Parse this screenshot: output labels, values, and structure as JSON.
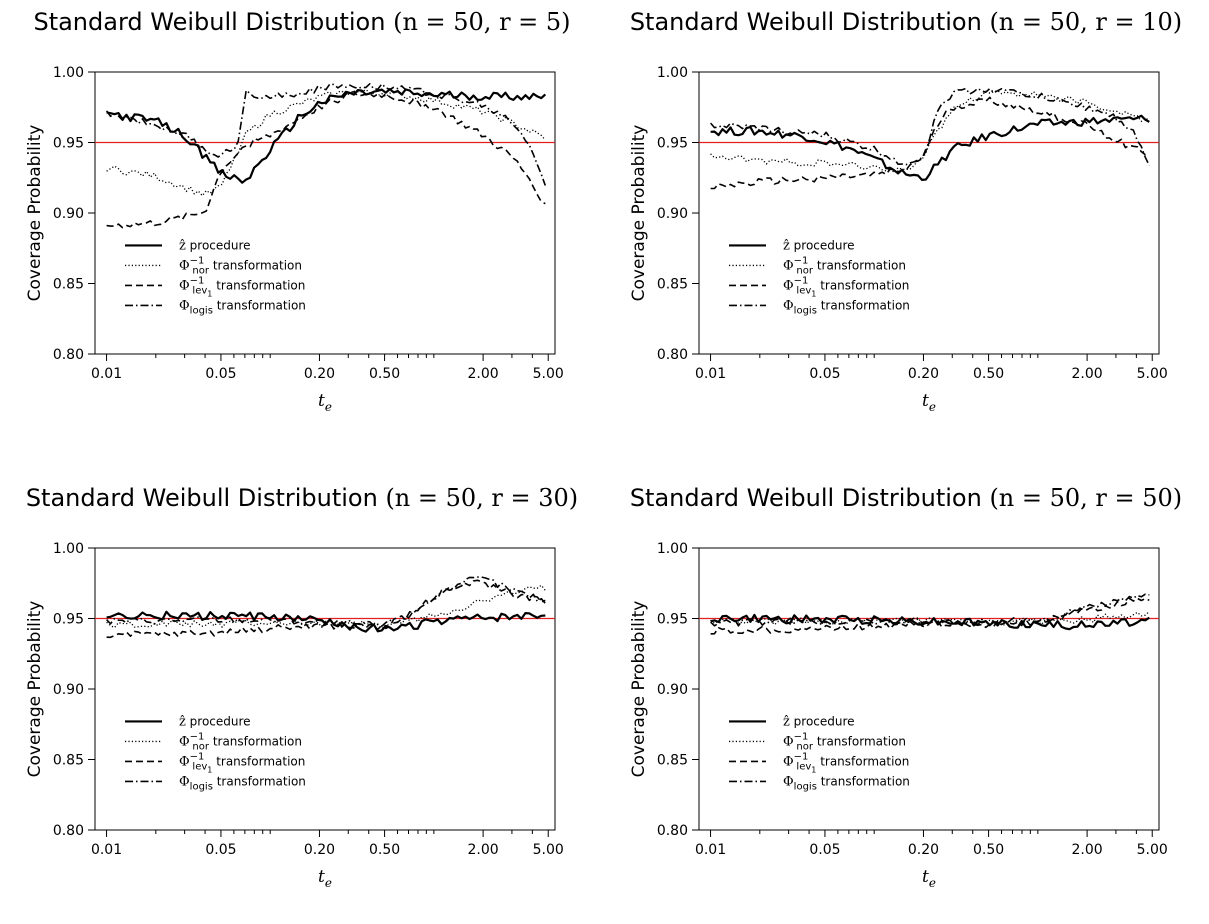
{
  "chart_data": [
    {
      "type": "line",
      "title_prefix": "Standard Weibull Distribution ",
      "title_params": "(n = 50, r = 5)",
      "xlabel": "t_e",
      "ylabel": "Coverage Probability",
      "x_scale": "log",
      "xlim": [
        0.0085,
        5.5
      ],
      "ylim": [
        0.8,
        1.0
      ],
      "x_ticks": [
        0.01,
        0.05,
        0.2,
        0.5,
        2.0,
        5.0
      ],
      "x_tick_labels": [
        "0.01",
        "0.05",
        "0.20",
        "0.50",
        "2.00",
        "5.00"
      ],
      "y_ticks": [
        0.8,
        0.85,
        0.9,
        0.95,
        1.0
      ],
      "y_tick_labels": [
        "0.80",
        "0.85",
        "0.90",
        "0.95",
        "1.00"
      ],
      "reference_line": {
        "y": 0.95,
        "color": "#e02020"
      },
      "legend_position": "lower-left",
      "series": [
        {
          "name": "ẑ procedure",
          "dash": "solid",
          "width": 2.2,
          "x": [
            0.01,
            0.02,
            0.03,
            0.04,
            0.05,
            0.07,
            0.1,
            0.15,
            0.2,
            0.3,
            0.5,
            0.7,
            1,
            2,
            4.8
          ],
          "y": [
            0.971,
            0.965,
            0.955,
            0.94,
            0.928,
            0.922,
            0.945,
            0.968,
            0.978,
            0.985,
            0.986,
            0.985,
            0.984,
            0.983,
            0.983
          ]
        },
        {
          "name": "Φ_nor^-1 transformation",
          "dash": "dotted",
          "width": 1.3,
          "x": [
            0.01,
            0.02,
            0.03,
            0.04,
            0.05,
            0.07,
            0.1,
            0.2,
            0.3,
            0.5,
            1,
            2,
            3,
            4.8
          ],
          "y": [
            0.932,
            0.926,
            0.918,
            0.913,
            0.918,
            0.955,
            0.97,
            0.982,
            0.986,
            0.985,
            0.98,
            0.972,
            0.964,
            0.953
          ]
        },
        {
          "name": "Φ_lev1^-1 transformation",
          "dash": "dashed",
          "width": 1.6,
          "x": [
            0.01,
            0.02,
            0.03,
            0.04,
            0.05,
            0.07,
            0.1,
            0.2,
            0.3,
            0.5,
            1,
            2,
            3,
            4,
            4.8
          ],
          "y": [
            0.891,
            0.893,
            0.897,
            0.901,
            0.93,
            0.948,
            0.955,
            0.975,
            0.984,
            0.984,
            0.975,
            0.955,
            0.94,
            0.922,
            0.905
          ]
        },
        {
          "name": "Φ_logis transformation",
          "dash": "dashdot",
          "width": 1.6,
          "x": [
            0.01,
            0.02,
            0.03,
            0.04,
            0.05,
            0.065,
            0.07,
            0.1,
            0.2,
            0.3,
            0.5,
            1,
            2,
            3,
            4,
            4.8
          ],
          "y": [
            0.97,
            0.963,
            0.955,
            0.945,
            0.94,
            0.95,
            0.986,
            0.982,
            0.988,
            0.991,
            0.99,
            0.985,
            0.976,
            0.965,
            0.945,
            0.92
          ]
        }
      ]
    },
    {
      "type": "line",
      "title_prefix": "Standard Weibull Distribution ",
      "title_params": "(n = 50, r = 10)",
      "xlabel": "t_e",
      "ylabel": "Coverage Probability",
      "x_scale": "log",
      "xlim": [
        0.0085,
        5.5
      ],
      "ylim": [
        0.8,
        1.0
      ],
      "x_ticks": [
        0.01,
        0.05,
        0.2,
        0.5,
        2.0,
        5.0
      ],
      "x_tick_labels": [
        "0.01",
        "0.05",
        "0.20",
        "0.50",
        "2.00",
        "5.00"
      ],
      "y_ticks": [
        0.8,
        0.85,
        0.9,
        0.95,
        1.0
      ],
      "y_tick_labels": [
        "0.80",
        "0.85",
        "0.90",
        "0.95",
        "1.00"
      ],
      "reference_line": {
        "y": 0.95,
        "color": "#e02020"
      },
      "legend_position": "lower-left",
      "series": [
        {
          "name": "ẑ procedure",
          "dash": "solid",
          "width": 2.2,
          "x": [
            0.01,
            0.02,
            0.04,
            0.07,
            0.1,
            0.15,
            0.2,
            0.25,
            0.3,
            0.5,
            1,
            2,
            4.8
          ],
          "y": [
            0.958,
            0.958,
            0.954,
            0.946,
            0.938,
            0.928,
            0.925,
            0.935,
            0.945,
            0.955,
            0.963,
            0.965,
            0.967
          ]
        },
        {
          "name": "Φ_nor^-1 transformation",
          "dash": "dotted",
          "width": 1.3,
          "x": [
            0.01,
            0.02,
            0.05,
            0.1,
            0.15,
            0.2,
            0.3,
            0.5,
            1,
            2,
            3,
            4.8
          ],
          "y": [
            0.94,
            0.937,
            0.935,
            0.932,
            0.93,
            0.94,
            0.975,
            0.986,
            0.984,
            0.978,
            0.972,
            0.965
          ]
        },
        {
          "name": "Φ_lev1^-1 transformation",
          "dash": "dashed",
          "width": 1.6,
          "x": [
            0.01,
            0.02,
            0.05,
            0.1,
            0.15,
            0.2,
            0.25,
            0.3,
            0.5,
            1,
            2,
            3,
            4,
            4.8
          ],
          "y": [
            0.918,
            0.922,
            0.925,
            0.927,
            0.93,
            0.94,
            0.965,
            0.975,
            0.98,
            0.972,
            0.962,
            0.952,
            0.945,
            0.942
          ]
        },
        {
          "name": "Φ_logis transformation",
          "dash": "dashdot",
          "width": 1.6,
          "x": [
            0.01,
            0.02,
            0.05,
            0.1,
            0.15,
            0.2,
            0.25,
            0.3,
            0.5,
            1,
            2,
            3,
            4,
            4.8
          ],
          "y": [
            0.962,
            0.96,
            0.955,
            0.945,
            0.935,
            0.94,
            0.975,
            0.985,
            0.988,
            0.983,
            0.975,
            0.968,
            0.955,
            0.932
          ]
        }
      ]
    },
    {
      "type": "line",
      "title_prefix": "Standard Weibull Distribution ",
      "title_params": "(n = 50, r = 30)",
      "xlabel": "t_e",
      "ylabel": "Coverage Probability",
      "x_scale": "log",
      "xlim": [
        0.0085,
        5.5
      ],
      "ylim": [
        0.8,
        1.0
      ],
      "x_ticks": [
        0.01,
        0.05,
        0.2,
        0.5,
        2.0,
        5.0
      ],
      "x_tick_labels": [
        "0.01",
        "0.05",
        "0.20",
        "0.50",
        "2.00",
        "5.00"
      ],
      "y_ticks": [
        0.8,
        0.85,
        0.9,
        0.95,
        1.0
      ],
      "y_tick_labels": [
        "0.80",
        "0.85",
        "0.90",
        "0.95",
        "1.00"
      ],
      "reference_line": {
        "y": 0.95,
        "color": "#e02020"
      },
      "legend_position": "lower-left",
      "series": [
        {
          "name": "ẑ procedure",
          "dash": "solid",
          "width": 2.2,
          "x": [
            0.01,
            0.05,
            0.1,
            0.2,
            0.3,
            0.5,
            0.7,
            1,
            2,
            4.8
          ],
          "y": [
            0.952,
            0.952,
            0.951,
            0.948,
            0.945,
            0.942,
            0.944,
            0.948,
            0.95,
            0.952
          ]
        },
        {
          "name": "Φ_nor^-1 transformation",
          "dash": "dotted",
          "width": 1.3,
          "x": [
            0.01,
            0.05,
            0.1,
            0.2,
            0.5,
            0.7,
            1,
            2,
            3,
            4.8
          ],
          "y": [
            0.946,
            0.946,
            0.947,
            0.946,
            0.945,
            0.948,
            0.952,
            0.962,
            0.968,
            0.972
          ]
        },
        {
          "name": "Φ_lev1^-1 transformation",
          "dash": "dashed",
          "width": 1.6,
          "x": [
            0.01,
            0.05,
            0.1,
            0.2,
            0.5,
            0.7,
            1,
            1.5,
            2,
            3,
            4.8
          ],
          "y": [
            0.938,
            0.94,
            0.943,
            0.945,
            0.944,
            0.952,
            0.965,
            0.975,
            0.975,
            0.968,
            0.962
          ]
        },
        {
          "name": "Φ_logis transformation",
          "dash": "dashdot",
          "width": 1.6,
          "x": [
            0.01,
            0.05,
            0.1,
            0.2,
            0.5,
            0.7,
            1,
            1.5,
            2,
            3,
            4.8
          ],
          "y": [
            0.948,
            0.949,
            0.949,
            0.947,
            0.945,
            0.952,
            0.965,
            0.976,
            0.978,
            0.97,
            0.962
          ]
        }
      ]
    },
    {
      "type": "line",
      "title_prefix": "Standard Weibull Distribution ",
      "title_params": "(n = 50, r = 50)",
      "xlabel": "t_e",
      "ylabel": "Coverage Probability",
      "x_scale": "log",
      "xlim": [
        0.0085,
        5.5
      ],
      "ylim": [
        0.8,
        1.0
      ],
      "x_ticks": [
        0.01,
        0.05,
        0.2,
        0.5,
        2.0,
        5.0
      ],
      "x_tick_labels": [
        "0.01",
        "0.05",
        "0.20",
        "0.50",
        "2.00",
        "5.00"
      ],
      "y_ticks": [
        0.8,
        0.85,
        0.9,
        0.95,
        1.0
      ],
      "y_tick_labels": [
        "0.80",
        "0.85",
        "0.90",
        "0.95",
        "1.00"
      ],
      "reference_line": {
        "y": 0.95,
        "color": "#e02020"
      },
      "legend_position": "lower-left",
      "series": [
        {
          "name": "ẑ procedure",
          "dash": "solid",
          "width": 2.2,
          "x": [
            0.01,
            0.05,
            0.1,
            0.2,
            0.5,
            1,
            2,
            3,
            4.8
          ],
          "y": [
            0.95,
            0.949,
            0.949,
            0.948,
            0.947,
            0.946,
            0.945,
            0.947,
            0.948
          ]
        },
        {
          "name": "Φ_nor^-1 transformation",
          "dash": "dotted",
          "width": 1.3,
          "x": [
            0.01,
            0.05,
            0.1,
            0.2,
            0.5,
            1,
            2,
            3,
            4.8
          ],
          "y": [
            0.948,
            0.948,
            0.948,
            0.948,
            0.947,
            0.948,
            0.949,
            0.952,
            0.955
          ]
        },
        {
          "name": "Φ_lev1^-1 transformation",
          "dash": "dashed",
          "width": 1.6,
          "x": [
            0.01,
            0.05,
            0.1,
            0.2,
            0.5,
            1,
            1.5,
            2,
            3,
            4.8
          ],
          "y": [
            0.941,
            0.943,
            0.945,
            0.946,
            0.946,
            0.948,
            0.952,
            0.956,
            0.96,
            0.965
          ]
        },
        {
          "name": "Φ_logis transformation",
          "dash": "dashdot",
          "width": 1.6,
          "x": [
            0.01,
            0.05,
            0.1,
            0.2,
            0.5,
            1,
            1.5,
            2,
            3,
            4.8
          ],
          "y": [
            0.947,
            0.948,
            0.948,
            0.948,
            0.947,
            0.949,
            0.953,
            0.958,
            0.962,
            0.966
          ]
        }
      ]
    }
  ],
  "legend_entries": [
    {
      "main": "ẑ",
      "sub": "",
      "sup": "",
      "tail": " procedure"
    },
    {
      "main": "Φ",
      "sub": "nor",
      "sup": "−1",
      "tail": " transformation"
    },
    {
      "main": "Φ",
      "sub": "lev",
      "sub2": "1",
      "sup": "−1",
      "tail": " transformation"
    },
    {
      "main": "Φ",
      "sub": "logis",
      "sup": "",
      "tail": " transformation"
    }
  ],
  "xlabel_main": "t",
  "xlabel_sub": "e"
}
